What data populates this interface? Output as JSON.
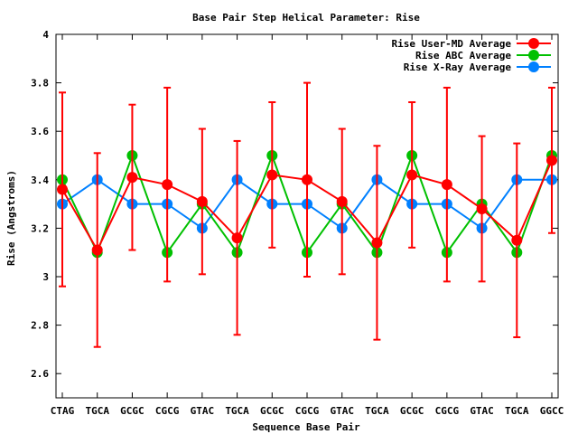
{
  "chart_data": {
    "type": "line",
    "title": "Base Pair Step Helical Parameter: Rise",
    "xlabel": "Sequence Base Pair",
    "ylabel": "Rise (Angstroms)",
    "categories": [
      "CTAG",
      "TGCA",
      "GCGC",
      "CGCG",
      "GTAC",
      "TGCA",
      "GCGC",
      "CGCG",
      "GTAC",
      "TGCA",
      "GCGC",
      "CGCG",
      "GTAC",
      "TGCA",
      "GGCC"
    ],
    "ylim": [
      2.5,
      4.0
    ],
    "yticks": [
      "4",
      "3.8",
      "3.6",
      "3.4",
      "3.2",
      "3",
      "2.8",
      "2.6"
    ],
    "yticks_values": [
      4.0,
      3.8,
      3.6,
      3.4,
      3.2,
      3.0,
      2.8,
      2.6
    ],
    "legend_position": "top-right",
    "grid": false,
    "series": [
      {
        "name": "Rise User-MD Average",
        "color": "#ff0000",
        "values": [
          3.36,
          3.11,
          3.41,
          3.38,
          3.31,
          3.16,
          3.42,
          3.4,
          3.31,
          3.14,
          3.42,
          3.38,
          3.28,
          3.15,
          3.48
        ],
        "error_low": [
          2.96,
          2.71,
          3.11,
          2.98,
          3.01,
          2.76,
          3.12,
          3.0,
          3.01,
          2.74,
          3.12,
          2.98,
          2.98,
          2.75,
          3.18
        ],
        "error_high": [
          3.76,
          3.51,
          3.71,
          3.78,
          3.61,
          3.56,
          3.72,
          3.8,
          3.61,
          3.54,
          3.72,
          3.78,
          3.58,
          3.55,
          3.78
        ]
      },
      {
        "name": "Rise ABC Average",
        "color": "#00c000",
        "values": [
          3.4,
          3.1,
          3.5,
          3.1,
          3.3,
          3.1,
          3.5,
          3.1,
          3.3,
          3.1,
          3.5,
          3.1,
          3.3,
          3.1,
          3.5
        ]
      },
      {
        "name": "Rise X-Ray Average",
        "color": "#0080ff",
        "values": [
          3.3,
          3.4,
          3.3,
          3.3,
          3.2,
          3.4,
          3.3,
          3.3,
          3.2,
          3.4,
          3.3,
          3.3,
          3.2,
          3.4,
          3.4
        ]
      }
    ]
  }
}
